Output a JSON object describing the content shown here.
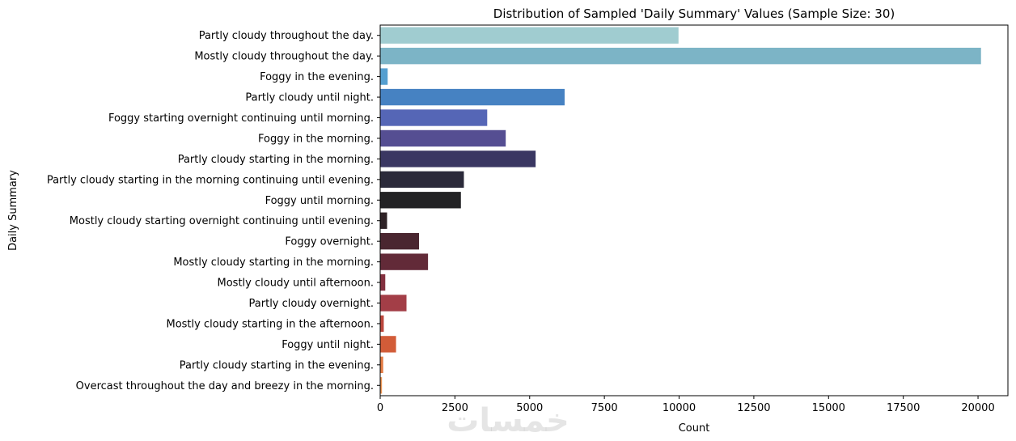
{
  "chart_data": {
    "type": "bar",
    "orientation": "horizontal",
    "title": "Distribution of Sampled 'Daily Summary' Values (Sample Size: 30)",
    "xlabel": "Count",
    "ylabel": "Daily Summary",
    "xlim": [
      0,
      21000
    ],
    "xticks": [
      0,
      2500,
      5000,
      7500,
      10000,
      12500,
      15000,
      17500,
      20000
    ],
    "grid": false,
    "categories": [
      "Partly cloudy throughout the day.",
      "Mostly cloudy throughout the day.",
      "Foggy in the evening.",
      "Partly cloudy until night.",
      "Foggy starting overnight continuing until morning.",
      "Foggy in the morning.",
      "Partly cloudy starting in the morning.",
      "Partly cloudy starting in the morning continuing until evening.",
      "Foggy until morning.",
      "Mostly cloudy starting overnight continuing until evening.",
      "Foggy overnight.",
      "Mostly cloudy starting in the morning.",
      "Mostly cloudy until afternoon.",
      "Partly cloudy overnight.",
      "Mostly cloudy starting in the afternoon.",
      "Foggy until night.",
      "Partly cloudy starting in the evening.",
      "Overcast throughout the day and breezy in the morning."
    ],
    "values": [
      9980,
      20100,
      250,
      6170,
      3580,
      4200,
      5200,
      2800,
      2700,
      230,
      1300,
      1600,
      170,
      880,
      120,
      530,
      100,
      60
    ],
    "colors": [
      "#a0ccd0",
      "#7cb4c6",
      "#559fd0",
      "#4682c2",
      "#5566b6",
      "#554e92",
      "#3a3762",
      "#2b2a3a",
      "#222224",
      "#2e2226",
      "#4a2630",
      "#622a38",
      "#83303f",
      "#a33e47",
      "#bc473d",
      "#d25c38",
      "#e37a42",
      "#eb9553"
    ]
  },
  "watermark_text": "خمسات"
}
